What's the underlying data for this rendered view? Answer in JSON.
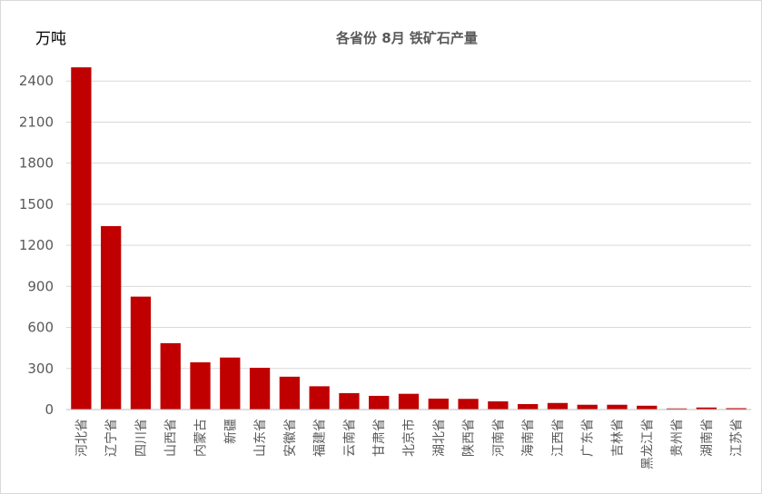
{
  "chart_data": {
    "type": "bar",
    "title": "各省份 8月 铁矿石产量",
    "ylabel": "万吨",
    "xlabel": "",
    "ylim": [
      0,
      2700
    ],
    "yticks": [
      0,
      300,
      600,
      900,
      1200,
      1500,
      1800,
      2100,
      2400
    ],
    "grid": true,
    "legend": "none",
    "bar_color": "#c00000",
    "categories": [
      "河北省",
      "辽宁省",
      "四川省",
      "山西省",
      "内蒙古",
      "新疆",
      "山东省",
      "安徽省",
      "福建省",
      "云南省",
      "甘肃省",
      "北京市",
      "湖北省",
      "陕西省",
      "河南省",
      "海南省",
      "江西省",
      "广东省",
      "吉林省",
      "黑龙江省",
      "贵州省",
      "湖南省",
      "江苏省"
    ],
    "values": [
      2500,
      1340,
      825,
      485,
      345,
      380,
      305,
      240,
      170,
      120,
      100,
      115,
      80,
      78,
      60,
      40,
      48,
      35,
      35,
      28,
      8,
      15,
      10
    ]
  }
}
